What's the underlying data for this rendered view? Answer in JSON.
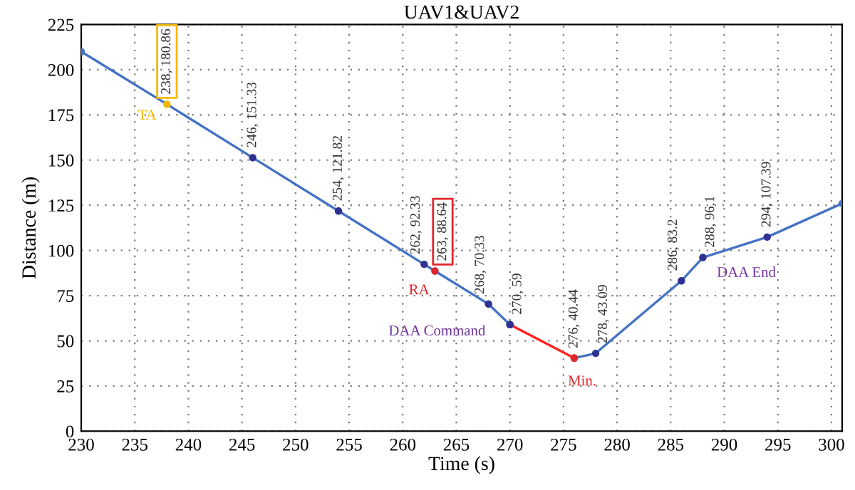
{
  "chart_data": {
    "type": "line",
    "title": "UAV1&UAV2",
    "xlabel": "Time (s)",
    "ylabel": "Distance (m)",
    "xlim": [
      230,
      301
    ],
    "ylim": [
      0,
      225
    ],
    "xticks": [
      230,
      235,
      240,
      245,
      250,
      255,
      260,
      265,
      270,
      275,
      280,
      285,
      290,
      295,
      300
    ],
    "yticks": [
      0,
      25,
      50,
      75,
      100,
      125,
      150,
      175,
      200,
      225
    ],
    "grid": true,
    "marker": "circle",
    "line_style": "solid",
    "series": [
      {
        "color": "#4472c4",
        "x": [
          230,
          238,
          246,
          254,
          262,
          263,
          268,
          270
        ],
        "values": [
          210,
          180.86,
          151.33,
          121.82,
          92.33,
          88.64,
          70.33,
          59
        ],
        "colors": [
          "#4472c4",
          "#f5b800",
          "#2e3192",
          "#2e3192",
          "#2e3192",
          "#e0262b",
          "#2e3192",
          "#2e3192"
        ],
        "value_labels": [
          null,
          "238, 180.86",
          "246, 151.33",
          "254, 121.82",
          "262, 92.33",
          "263, 88.64",
          "268, 70.33",
          "270, 59"
        ]
      },
      {
        "color": "#ff2020",
        "x": [
          270,
          276
        ],
        "values": [
          59,
          40.44
        ],
        "colors": [
          "#2e3192",
          "#e0262b"
        ],
        "value_labels": [
          null,
          "276, 40.44"
        ]
      },
      {
        "color": "#4472c4",
        "x": [
          276,
          278,
          286,
          288,
          294,
          301
        ],
        "values": [
          40.44,
          43.09,
          83.2,
          96.1,
          107.39,
          126
        ],
        "colors": [
          "#e0262b",
          "#2e3192",
          "#2e3192",
          "#2e3192",
          "#2e3192",
          "#4472c4"
        ],
        "value_labels": [
          null,
          "278, 43.09",
          "286, 83.2",
          "288, 96.1",
          "294, 107.39",
          null
        ]
      }
    ],
    "annotations": [
      {
        "text": "TA",
        "x": 238,
        "y": 180.86
      },
      {
        "text": "RA",
        "x": 263,
        "y": 88.64
      },
      {
        "text": "DAA Command",
        "x": 268,
        "y": 70.33
      },
      {
        "text": "Min.",
        "x": 276,
        "y": 40.44
      },
      {
        "text": "DAA End",
        "x": 288,
        "y": 96.1
      }
    ]
  }
}
